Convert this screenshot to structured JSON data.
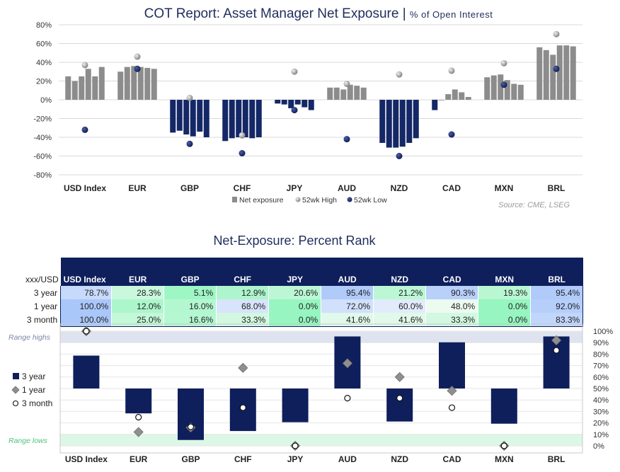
{
  "chart_data": [
    {
      "type": "bar",
      "title": "COT Report: Asset Manager Net Exposure |",
      "subtitle": "% of Open Interest",
      "source": "Source: CME, LSEG",
      "categories": [
        "USD Index",
        "EUR",
        "GBP",
        "CHF",
        "JPY",
        "AUD",
        "NZD",
        "CAD",
        "MXN",
        "BRL"
      ],
      "y_ticks": [
        "80%",
        "60%",
        "40%",
        "20%",
        "0%",
        "-20%",
        "-40%",
        "-60%",
        "-80%"
      ],
      "ylim": [
        -80,
        80
      ],
      "legend": [
        "Net exposure",
        "52wk High",
        "52wk Low"
      ],
      "legend_position": "bottom",
      "series": [
        {
          "name": "Net exposure",
          "values": [
            [
              25,
              20,
              25,
              33,
              25,
              35
            ],
            [
              30,
              35,
              36,
              35,
              34,
              33
            ],
            [
              -35,
              -33,
              -37,
              -39,
              -34,
              -40
            ],
            [
              -44,
              -41,
              -40,
              -40,
              -41,
              -40
            ],
            [
              -4,
              -5,
              -9,
              -5,
              -8,
              -11
            ],
            [
              13,
              13,
              11,
              16,
              15,
              13
            ],
            [
              -46,
              -51,
              -51,
              -50,
              -46,
              -41
            ],
            [
              -11,
              0,
              6,
              11,
              8,
              3
            ],
            [
              24,
              26,
              27,
              21,
              17,
              16
            ],
            [
              56,
              53,
              48,
              58,
              58,
              57
            ]
          ]
        },
        {
          "name": "52wk High",
          "values": [
            37,
            46,
            2,
            -38,
            30,
            17,
            27,
            31,
            39,
            70
          ]
        },
        {
          "name": "52wk Low",
          "values": [
            -32,
            33,
            -47,
            -57,
            -11,
            -42,
            -60,
            -37,
            16,
            33
          ]
        }
      ],
      "colors": {
        "net": "#8c8c8c",
        "net_negative": "#142766",
        "high": "#a8a8a8",
        "low": "#142766"
      }
    },
    {
      "type": "table",
      "title": "Net-Exposure: Percent Rank",
      "corner_label": "xxx/USD",
      "columns": [
        "USD Index",
        "EUR",
        "GBP",
        "CHF",
        "JPY",
        "AUD",
        "NZD",
        "CAD",
        "MXN",
        "BRL"
      ],
      "rows": [
        {
          "label": "3 year",
          "values": [
            "78.7%",
            "28.3%",
            "5.1%",
            "12.9%",
            "20.6%",
            "95.4%",
            "21.2%",
            "90.3%",
            "19.3%",
            "95.4%"
          ]
        },
        {
          "label": "1 year",
          "values": [
            "100.0%",
            "12.0%",
            "16.0%",
            "68.0%",
            "0.0%",
            "72.0%",
            "60.0%",
            "48.0%",
            "0.0%",
            "92.0%"
          ]
        },
        {
          "label": "3 month",
          "values": [
            "100.0%",
            "25.0%",
            "16.6%",
            "33.3%",
            "0.0%",
            "41.6%",
            "41.6%",
            "33.3%",
            "0.0%",
            "83.3%"
          ]
        }
      ]
    },
    {
      "type": "bar",
      "categories": [
        "USD Index",
        "EUR",
        "GBP",
        "CHF",
        "JPY",
        "AUD",
        "NZD",
        "CAD",
        "MXN",
        "BRL"
      ],
      "y_ticks": [
        "100%",
        "90%",
        "80%",
        "70%",
        "60%",
        "50%",
        "40%",
        "30%",
        "20%",
        "10%",
        "0%"
      ],
      "ylim": [
        0,
        100
      ],
      "band_labels": {
        "high": "Range highs",
        "low": "Range lows"
      },
      "legend": [
        "3 year",
        "1 year",
        "3 month"
      ],
      "legend_position": "left",
      "series": [
        {
          "name": "3 year",
          "values": [
            78.7,
            28.3,
            5.1,
            12.9,
            20.6,
            95.4,
            21.2,
            90.3,
            19.3,
            95.4
          ]
        },
        {
          "name": "1 year",
          "values": [
            100.0,
            12.0,
            16.0,
            68.0,
            0.0,
            72.0,
            60.0,
            48.0,
            0.0,
            92.0
          ]
        },
        {
          "name": "3 month",
          "values": [
            100.0,
            25.0,
            16.6,
            33.3,
            0.0,
            41.6,
            41.6,
            33.3,
            0.0,
            83.3
          ]
        }
      ],
      "colors": {
        "bar": "#0f1f5c",
        "diamond": "#8f8f8f",
        "band_high": "#dfe3ef",
        "band_low": "#dcf7e6"
      }
    }
  ]
}
